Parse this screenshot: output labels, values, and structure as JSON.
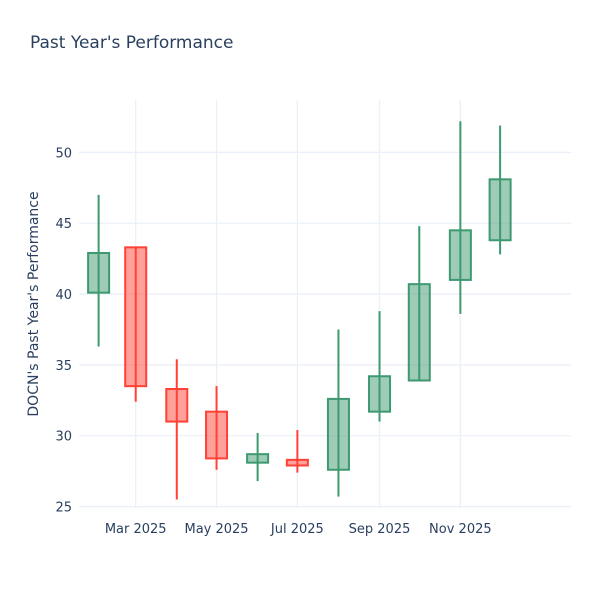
{
  "title": "Past Year's Performance",
  "colors": {
    "text": "#2a3f5f",
    "grid": "#ebf0f8",
    "background": "#ffffff",
    "increasing_line": "#3D9970",
    "decreasing_line": "#FF4136",
    "increasing_fill": "rgba(61,153,112,0.5)",
    "decreasing_fill": "rgba(255,65,54,0.5)"
  },
  "chart_data": {
    "type": "candlestick",
    "title": "Past Year's Performance",
    "xlabel": "",
    "ylabel": "DOCN's Past Year's Performance",
    "grid": true,
    "legend": false,
    "ylim": [
      24.9,
      53.7
    ],
    "y_ticks": [
      25,
      30,
      35,
      40,
      45,
      50
    ],
    "x_ticks": [
      {
        "label": "Mar 2025",
        "day": 28
      },
      {
        "label": "May 2025",
        "day": 89
      },
      {
        "label": "Jul 2025",
        "day": 150
      },
      {
        "label": "Sep 2025",
        "day": 212
      },
      {
        "label": "Nov 2025",
        "day": 273
      }
    ],
    "candles": [
      {
        "date": "Feb 2025",
        "day": 0,
        "open": 40.1,
        "high": 47.0,
        "low": 36.3,
        "close": 42.9
      },
      {
        "date": "Mar 2025",
        "day": 28,
        "open": 43.3,
        "high": 43.3,
        "low": 32.4,
        "close": 33.5
      },
      {
        "date": "Apr 2025",
        "day": 59,
        "open": 33.3,
        "high": 35.4,
        "low": 25.5,
        "close": 31.0
      },
      {
        "date": "May 2025",
        "day": 89,
        "open": 31.7,
        "high": 33.5,
        "low": 27.6,
        "close": 28.4
      },
      {
        "date": "Jun 2025",
        "day": 120,
        "open": 28.1,
        "high": 30.2,
        "low": 26.8,
        "close": 28.7
      },
      {
        "date": "Jul 2025",
        "day": 150,
        "open": 28.3,
        "high": 30.4,
        "low": 27.4,
        "close": 27.9
      },
      {
        "date": "Aug 2025",
        "day": 181,
        "open": 27.6,
        "high": 37.5,
        "low": 25.7,
        "close": 32.6
      },
      {
        "date": "Sep 2025",
        "day": 212,
        "open": 31.7,
        "high": 38.8,
        "low": 31.0,
        "close": 34.2
      },
      {
        "date": "Oct 2025",
        "day": 242,
        "open": 33.9,
        "high": 44.8,
        "low": 33.9,
        "close": 40.7
      },
      {
        "date": "Nov 2025",
        "day": 273,
        "open": 41.0,
        "high": 52.2,
        "low": 38.6,
        "close": 44.5
      },
      {
        "date": "Dec 2025",
        "day": 303,
        "open": 43.8,
        "high": 51.9,
        "low": 42.8,
        "close": 48.1
      }
    ]
  }
}
